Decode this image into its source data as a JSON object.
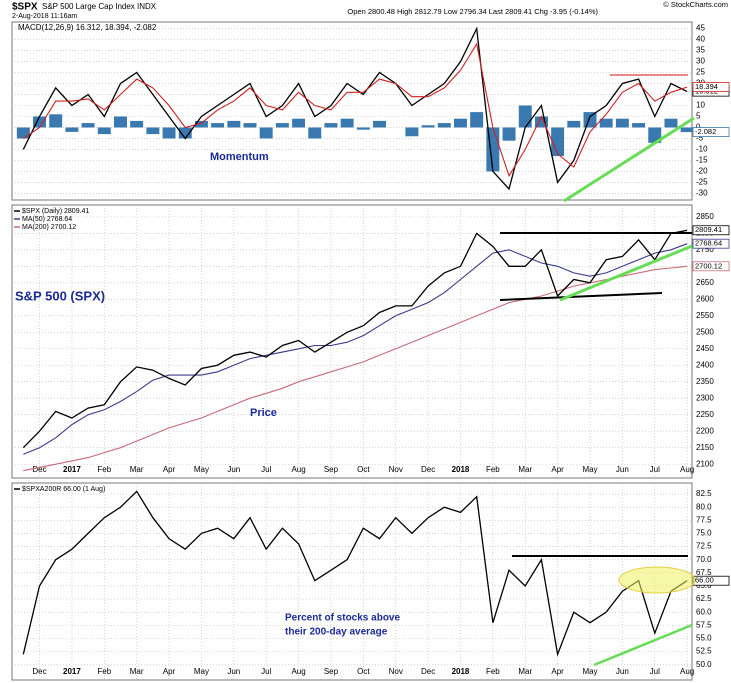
{
  "header": {
    "symbol": "$SPX",
    "name": "S&P 500 Large Cap Index INDX",
    "date": "2-Aug-2018 11:16am",
    "quote": "Open 2800.48  High 2812.79  Low 2796.34  Last 2809.41  Chg -3.95 (-0.14%)",
    "credit": "© StockCharts.com"
  },
  "chart_data": [
    {
      "type": "line",
      "legend": "MACD(12,26,9) 16.312, 18.394, -2.082",
      "annotation": "Momentum",
      "ylim": [
        -33,
        48
      ],
      "yticks": [
        45,
        40,
        35,
        30,
        25,
        20,
        15,
        10,
        5,
        0,
        -5,
        -10,
        -15,
        -20,
        -25,
        -30
      ],
      "grid": true,
      "xlim": [
        -0.7,
        41.3
      ],
      "series": [
        {
          "style": "bar",
          "color": "#3a78b0",
          "values": [
            -5,
            5,
            6,
            -2,
            2,
            -3,
            5,
            3,
            -3,
            -5,
            -5,
            3,
            2,
            3,
            2,
            -5,
            2,
            4,
            -5,
            2,
            4,
            -1,
            3,
            0,
            -4,
            1,
            2,
            4,
            7,
            -20,
            -6,
            10,
            5,
            -13,
            3,
            7,
            4,
            4,
            2,
            -7,
            4,
            -2.082
          ]
        },
        {
          "style": "line",
          "color": "#000000",
          "values": [
            -10,
            5,
            18,
            10,
            15,
            5,
            20,
            25,
            15,
            5,
            -5,
            5,
            10,
            15,
            20,
            5,
            10,
            20,
            5,
            10,
            20,
            15,
            25,
            20,
            10,
            15,
            20,
            30,
            45,
            -20,
            -28,
            0,
            10,
            -25,
            -15,
            5,
            10,
            20,
            22,
            5,
            20,
            16.312
          ]
        },
        {
          "style": "line",
          "color": "#d02020",
          "values": [
            -5,
            0,
            12,
            12,
            13,
            8,
            15,
            22,
            18,
            10,
            0,
            2,
            8,
            12,
            18,
            10,
            8,
            16,
            10,
            8,
            16,
            16,
            22,
            20,
            14,
            14,
            18,
            26,
            38,
            0,
            -22,
            -10,
            5,
            -12,
            -18,
            -2,
            6,
            16,
            20,
            12,
            16,
            18.394
          ]
        }
      ]
    },
    {
      "type": "line",
      "annotation": "S&P 500 (SPX)",
      "annotation2": "Price",
      "ylim": [
        2058,
        2886
      ],
      "yticks": [
        2850,
        2800,
        2750,
        2700,
        2650,
        2600,
        2550,
        2500,
        2450,
        2400,
        2350,
        2300,
        2250,
        2200,
        2150,
        2100
      ],
      "grid": true,
      "xlim": [
        -0.7,
        41.3
      ],
      "xticks": [
        {
          "value": 1,
          "label": "Dec"
        },
        {
          "value": 3,
          "label": "2017"
        },
        {
          "value": 5,
          "label": "Feb"
        },
        {
          "value": 7,
          "label": "Mar"
        },
        {
          "value": 9,
          "label": "Apr"
        },
        {
          "value": 11,
          "label": "May"
        },
        {
          "value": 13,
          "label": "Jun"
        },
        {
          "value": 15,
          "label": "Jul"
        },
        {
          "value": 17,
          "label": "Aug"
        },
        {
          "value": 19,
          "label": "Sep"
        },
        {
          "value": 21,
          "label": "Oct"
        },
        {
          "value": 23,
          "label": "Nov"
        },
        {
          "value": 25,
          "label": "Dec"
        },
        {
          "value": 27,
          "label": "2018"
        },
        {
          "value": 29,
          "label": "Feb"
        },
        {
          "value": 31,
          "label": "Mar"
        },
        {
          "value": 33,
          "label": "Apr"
        },
        {
          "value": 35,
          "label": "May"
        },
        {
          "value": 37,
          "label": "Jun"
        },
        {
          "value": 39,
          "label": "Jul"
        },
        {
          "value": 41,
          "label": "Aug"
        }
      ],
      "series": [
        {
          "name": "MA(200) 2700.12",
          "style": "line",
          "color": "#c86a78",
          "values": [
            2080,
            2090,
            2100,
            2110,
            2120,
            2135,
            2150,
            2170,
            2190,
            2210,
            2225,
            2240,
            2260,
            2280,
            2300,
            2315,
            2330,
            2350,
            2365,
            2380,
            2395,
            2410,
            2430,
            2450,
            2470,
            2490,
            2510,
            2530,
            2550,
            2570,
            2590,
            2600,
            2610,
            2625,
            2640,
            2650,
            2660,
            2670,
            2680,
            2690,
            2695,
            2700.12
          ]
        },
        {
          "name": "MA(50) 2768.64",
          "style": "line",
          "color": "#3a3a8c",
          "values": [
            2130,
            2150,
            2180,
            2220,
            2250,
            2265,
            2290,
            2320,
            2355,
            2370,
            2370,
            2370,
            2380,
            2400,
            2420,
            2430,
            2440,
            2450,
            2460,
            2460,
            2470,
            2490,
            2520,
            2550,
            2570,
            2590,
            2620,
            2660,
            2700,
            2740,
            2750,
            2730,
            2710,
            2700,
            2680,
            2670,
            2680,
            2700,
            2720,
            2740,
            2750,
            2768.64
          ]
        },
        {
          "name": "$SPX (Daily) 2809.41",
          "style": "line",
          "color": "#000000",
          "values": [
            2150,
            2200,
            2260,
            2240,
            2270,
            2280,
            2350,
            2395,
            2385,
            2360,
            2340,
            2390,
            2400,
            2430,
            2440,
            2425,
            2460,
            2475,
            2440,
            2470,
            2500,
            2520,
            2560,
            2580,
            2580,
            2640,
            2680,
            2700,
            2800,
            2760,
            2700,
            2700,
            2750,
            2610,
            2660,
            2650,
            2720,
            2730,
            2780,
            2720,
            2800,
            2809.41
          ]
        }
      ]
    },
    {
      "type": "line",
      "annotation": "Percent of stocks above",
      "annotation2": "their 200-day average",
      "ylim": [
        47.1,
        84.6
      ],
      "yticks": [
        {
          "value": 82.5,
          "label": "82.5"
        },
        {
          "value": 80,
          "label": "80.0"
        },
        {
          "value": 77.5,
          "label": "77.5"
        },
        {
          "value": 75,
          "label": "75.0"
        },
        {
          "value": 72.5,
          "label": "72.5"
        },
        {
          "value": 70,
          "label": "70.0"
        },
        {
          "value": 67.5,
          "label": "67.5"
        },
        {
          "value": 65,
          "label": "65.0"
        },
        {
          "value": 62.5,
          "label": "62.5"
        },
        {
          "value": 60,
          "label": "60.0"
        },
        {
          "value": 57.5,
          "label": "57.5"
        },
        {
          "value": 55,
          "label": "55.0"
        },
        {
          "value": 52.5,
          "label": "52.5"
        },
        {
          "value": 50,
          "label": "50.0"
        }
      ],
      "grid": true,
      "xlim": [
        -0.7,
        41.3
      ],
      "xticks": [
        {
          "value": 1,
          "label": "Dec"
        },
        {
          "value": 3,
          "label": "2017"
        },
        {
          "value": 5,
          "label": "Feb"
        },
        {
          "value": 7,
          "label": "Mar"
        },
        {
          "value": 9,
          "label": "Apr"
        },
        {
          "value": 11,
          "label": "May"
        },
        {
          "value": 13,
          "label": "Jun"
        },
        {
          "value": 15,
          "label": "Jul"
        },
        {
          "value": 17,
          "label": "Aug"
        },
        {
          "value": 19,
          "label": "Sep"
        },
        {
          "value": 21,
          "label": "Oct"
        },
        {
          "value": 23,
          "label": "Nov"
        },
        {
          "value": 25,
          "label": "Dec"
        },
        {
          "value": 27,
          "label": "2018"
        },
        {
          "value": 29,
          "label": "Feb"
        },
        {
          "value": 31,
          "label": "Mar"
        },
        {
          "value": 33,
          "label": "Apr"
        },
        {
          "value": 35,
          "label": "May"
        },
        {
          "value": 37,
          "label": "Jun"
        },
        {
          "value": 39,
          "label": "Jul"
        },
        {
          "value": 41,
          "label": "Aug"
        }
      ],
      "series": [
        {
          "name": "$SPXA200R 66.00 (1 Aug)",
          "style": "line",
          "color": "#000000",
          "value_labels": {
            "41": "66.00"
          },
          "values": [
            52,
            65,
            70,
            72,
            75,
            78,
            80,
            83,
            78,
            74,
            72,
            75,
            76,
            74,
            78,
            72,
            76,
            73,
            66,
            68,
            70,
            76,
            74,
            78,
            75,
            78,
            80,
            79,
            82,
            58,
            68,
            65,
            70,
            52,
            60,
            58,
            60,
            64,
            66,
            56,
            64,
            66
          ]
        }
      ]
    }
  ]
}
